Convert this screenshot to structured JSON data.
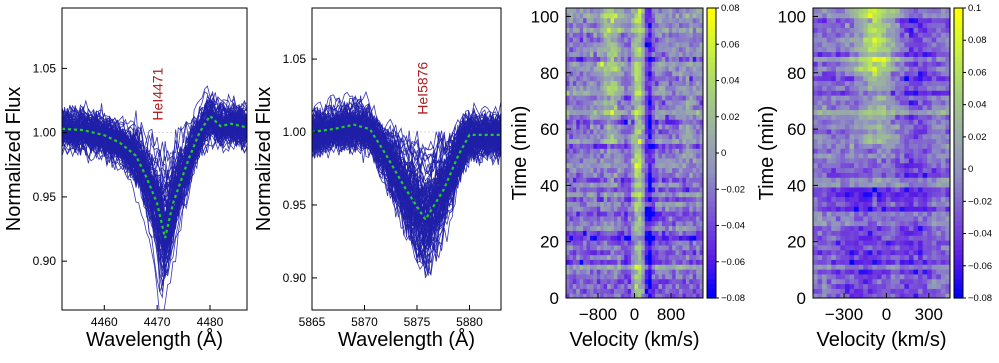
{
  "figure": {
    "background": "#ffffff",
    "line_color": "#1f1fa8",
    "mean_color": "#22cc22",
    "annotation_color": "#b02020"
  },
  "chart_data": [
    {
      "id": "p1",
      "type": "line",
      "xlabel": "Wavelength (Å)",
      "ylabel": "Normalized Flux",
      "xlim": [
        4452,
        4487
      ],
      "ylim": [
        0.862,
        1.097
      ],
      "xticks": [
        4460,
        4470,
        4480
      ],
      "yticks": [
        0.9,
        0.95,
        1.0,
        1.05
      ],
      "ytick_labels": [
        "0.90",
        "0.95",
        "1.00",
        "1.05"
      ],
      "annotation": {
        "text": "HeI4471",
        "x": 4471,
        "y": 1.03
      },
      "n_spectra_approx": 100,
      "mean_profile": {
        "x": [
          4452,
          4456,
          4460,
          4463,
          4466,
          4468,
          4470,
          4471.5,
          4473,
          4476,
          4478,
          4480,
          4482,
          4484,
          4487
        ],
        "y": [
          1.003,
          1.002,
          0.998,
          0.992,
          0.982,
          0.965,
          0.945,
          0.918,
          0.945,
          0.98,
          1.0,
          1.013,
          1.005,
          1.007,
          1.004
        ]
      }
    },
    {
      "id": "p2",
      "type": "line",
      "xlabel": "Wavelength (Å)",
      "ylabel": "Normalized Flux",
      "xlim": [
        5865,
        5883
      ],
      "ylim": [
        0.878,
        1.085
      ],
      "xticks": [
        5865,
        5870,
        5875,
        5880
      ],
      "yticks": [
        0.9,
        0.95,
        1.0,
        1.05
      ],
      "ytick_labels": [
        "0.90",
        "0.95",
        "1.00",
        "1.05"
      ],
      "annotation": {
        "text": "HeI5876",
        "x": 5876,
        "y": 1.03
      },
      "n_spectra_approx": 100,
      "mean_profile": {
        "x": [
          5865,
          5867,
          5869,
          5870.5,
          5872,
          5874,
          5875.8,
          5877.5,
          5879,
          5880,
          5883
        ],
        "y": [
          1.0,
          1.002,
          1.005,
          1.002,
          0.985,
          0.96,
          0.94,
          0.96,
          0.985,
          0.998,
          0.998
        ]
      }
    },
    {
      "id": "p3",
      "type": "heatmap",
      "xlabel": "Velocity (km/s)",
      "ylabel": "Time (min)",
      "xlim": [
        -1500,
        1500
      ],
      "ylim": [
        0,
        103
      ],
      "xticks": [
        -800,
        0,
        800
      ],
      "xtick_labels": [
        "−800",
        "0",
        "800"
      ],
      "yticks": [
        0,
        20,
        40,
        60,
        80,
        100
      ],
      "colorbar": {
        "min": -0.08,
        "max": 0.08,
        "ticks": [
          -0.08,
          -0.06,
          -0.04,
          -0.02,
          0,
          0.02,
          0.04,
          0.06,
          0.08
        ],
        "tick_labels": [
          "−0.08",
          "−0.06",
          "−0.04",
          "−0.02",
          "0",
          "0.02",
          "0.04",
          "0.06",
          "0.08"
        ]
      },
      "colormap": [
        "#0000ff",
        "#5e1fe6",
        "#7d55d6",
        "#8f8fc2",
        "#9aaea6",
        "#a5cf7c",
        "#c8f240",
        "#ffff00"
      ],
      "n_time_rows": 60,
      "n_velocity_bins": 40,
      "profile_description": "Bright (positive) column near 0 to +150 km/s and at around -500 km/s at late times; dark (negative) band near +300 km/s."
    },
    {
      "id": "p4",
      "type": "heatmap",
      "xlabel": "Velocity (km/s)",
      "ylabel": "Time (min)",
      "xlim": [
        -520,
        450
      ],
      "ylim": [
        0,
        103
      ],
      "xticks": [
        -300,
        0,
        300
      ],
      "xtick_labels": [
        "−300",
        "0",
        "300"
      ],
      "yticks": [
        0,
        20,
        40,
        60,
        80,
        100
      ],
      "colorbar": {
        "min": -0.08,
        "max": 0.1,
        "ticks": [
          -0.08,
          -0.06,
          -0.04,
          -0.02,
          0,
          0.02,
          0.04,
          0.06,
          0.08,
          0.1
        ],
        "tick_labels": [
          "−0.08",
          "−0.06",
          "−0.04",
          "−0.02",
          "0",
          "0.02",
          "0.04",
          "0.06",
          "0.08",
          "0.1"
        ]
      },
      "colormap": [
        "#0000ff",
        "#5e1fe6",
        "#7d55d6",
        "#8f8fc2",
        "#9aaea6",
        "#a5cf7c",
        "#c8f240",
        "#ffff00"
      ],
      "n_time_rows": 60,
      "n_velocity_bins": 30,
      "profile_description": "Bright (positive) region between -250 and +50 km/s at late times (80-100 min); dark (negative) lower portion below 40 min."
    }
  ]
}
